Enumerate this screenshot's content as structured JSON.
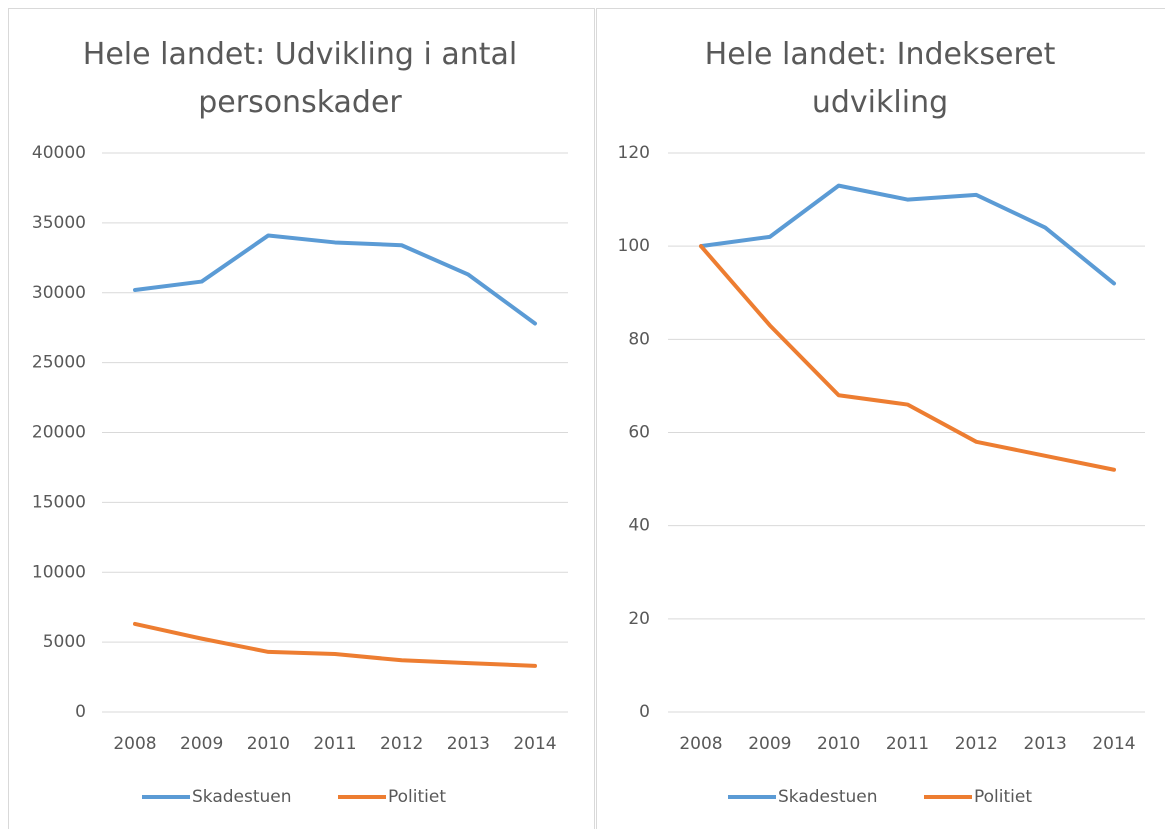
{
  "chart_data": [
    {
      "type": "line",
      "title": "Hele landet: Udvikling i antal personskader",
      "categories": [
        "2008",
        "2009",
        "2010",
        "2011",
        "2012",
        "2013",
        "2014"
      ],
      "series": [
        {
          "name": "Skadestuen",
          "color": "#5b9bd5",
          "values": [
            30200,
            30800,
            34100,
            33600,
            33400,
            31300,
            27800
          ]
        },
        {
          "name": "Politiet",
          "color": "#ed7d31",
          "values": [
            6300,
            5250,
            4300,
            4150,
            3700,
            3500,
            3300
          ]
        }
      ],
      "ylim": [
        0,
        40000
      ],
      "yticks": [
        0,
        5000,
        10000,
        15000,
        20000,
        25000,
        30000,
        35000,
        40000
      ],
      "grid": true
    },
    {
      "type": "line",
      "title": "Hele landet: Indekseret udvikling",
      "categories": [
        "2008",
        "2009",
        "2010",
        "2011",
        "2012",
        "2013",
        "2014"
      ],
      "series": [
        {
          "name": "Skadestuen",
          "color": "#5b9bd5",
          "values": [
            100,
            102,
            113,
            110,
            111,
            104,
            92
          ]
        },
        {
          "name": "Politiet",
          "color": "#ed7d31",
          "values": [
            100,
            83,
            68,
            66,
            58,
            55,
            52
          ]
        }
      ],
      "ylim": [
        0,
        120
      ],
      "yticks": [
        0,
        20,
        40,
        60,
        80,
        100,
        120
      ],
      "grid": true
    }
  ]
}
